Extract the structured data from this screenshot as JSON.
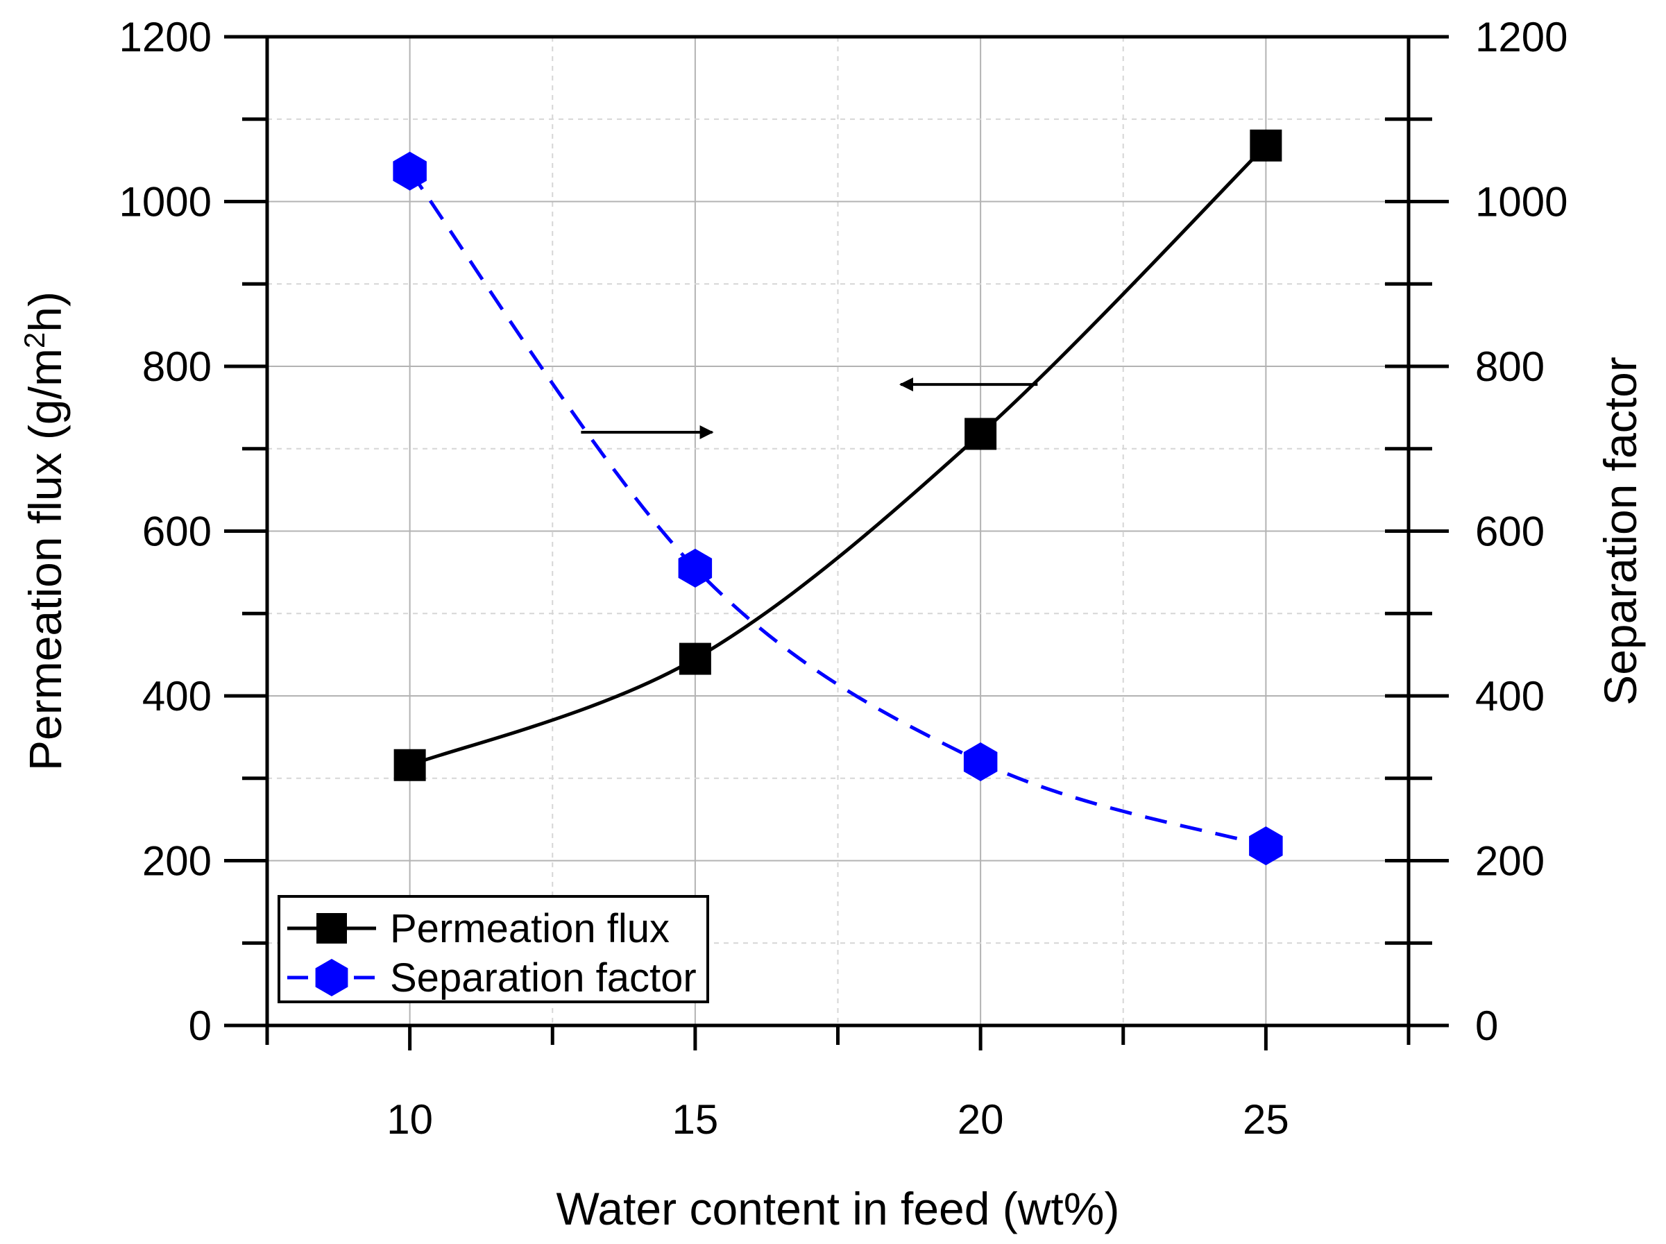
{
  "chart_data": {
    "type": "line",
    "x": [
      10,
      15,
      20,
      25
    ],
    "xlim": [
      7.5,
      27.5
    ],
    "x_ticks": [
      "10",
      "15",
      "20",
      "25"
    ],
    "xlabel": "Water content in feed (wt%)",
    "ylabel_left": {
      "pre": "Permeation flux (g/m",
      "sup": "2",
      "post": "h)"
    },
    "ylabel_right": "Separation factor",
    "ylim_left": [
      0,
      1200
    ],
    "ylim_right": [
      0,
      1200
    ],
    "y_ticks": [
      "0",
      "200",
      "400",
      "600",
      "800",
      "1000",
      "1200"
    ],
    "grid": true,
    "legend_position": "bottom-left",
    "series": [
      {
        "name": "Permeation flux",
        "axis": "left",
        "values": [
          316,
          445,
          718,
          1068
        ],
        "color": "#000000",
        "marker": "square",
        "line_style": "solid"
      },
      {
        "name": "Separation factor",
        "axis": "right",
        "values": [
          1037,
          555,
          320,
          218
        ],
        "color": "#0000ff",
        "marker": "hexagon",
        "line_style": "dashed"
      }
    ],
    "annotations": [
      {
        "type": "arrow",
        "points_to": "right",
        "refers_to": "Separation factor"
      },
      {
        "type": "arrow",
        "points_to": "left",
        "refers_to": "Permeation flux"
      }
    ]
  }
}
